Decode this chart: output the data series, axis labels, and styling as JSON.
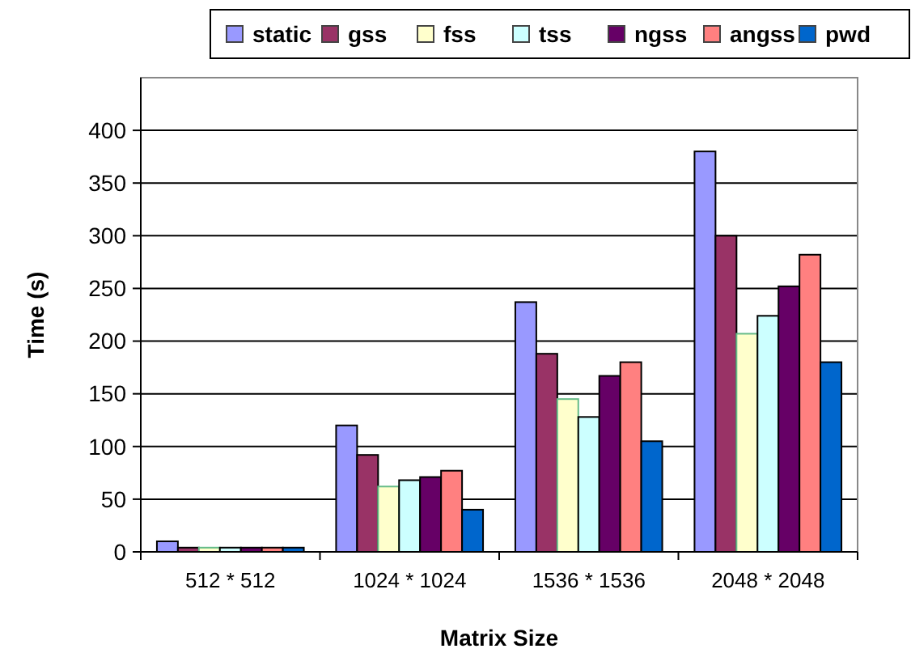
{
  "chart_data": {
    "type": "bar",
    "xlabel": "Matrix Size",
    "ylabel": "Time (s)",
    "categories": [
      "512 * 512",
      "1024 * 1024",
      "1536 * 1536",
      "2048 * 2048"
    ],
    "series": [
      {
        "name": "static",
        "color": "#9999ff",
        "values": [
          10,
          120,
          237,
          380
        ]
      },
      {
        "name": "gss",
        "color": "#993366",
        "values": [
          4,
          92,
          188,
          300
        ]
      },
      {
        "name": "fss",
        "color": "#ffffcc",
        "values": [
          4,
          62,
          145,
          207
        ]
      },
      {
        "name": "tss",
        "color": "#ccffff",
        "values": [
          4,
          68,
          128,
          224
        ]
      },
      {
        "name": "ngss",
        "color": "#660066",
        "values": [
          4,
          71,
          167,
          252
        ]
      },
      {
        "name": "angss",
        "color": "#ff8080",
        "values": [
          4,
          77,
          180,
          282
        ]
      },
      {
        "name": "pwd",
        "color": "#0066cc",
        "values": [
          4,
          40,
          105,
          180
        ]
      }
    ],
    "ylim": [
      0,
      450
    ],
    "yticks": [
      0,
      50,
      100,
      150,
      200,
      250,
      300,
      350,
      400
    ],
    "grid": "y",
    "legend": "top"
  }
}
